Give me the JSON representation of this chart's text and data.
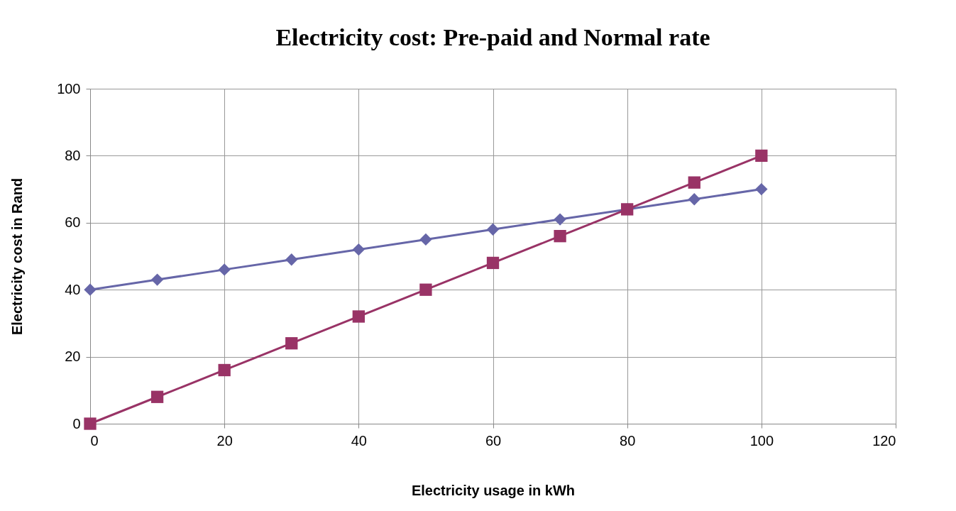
{
  "chart_data": {
    "type": "line",
    "title": "Electricity cost: Pre-paid and Normal rate",
    "xlabel": "Electricity usage in kWh",
    "ylabel": "Electricity cost in Rand",
    "x": [
      0,
      10,
      20,
      30,
      40,
      50,
      60,
      70,
      80,
      90,
      100
    ],
    "series": [
      {
        "color": "#6666a8",
        "marker": "diamond",
        "values": [
          40,
          43,
          46,
          49,
          52,
          55,
          58,
          61,
          64,
          67,
          70
        ]
      },
      {
        "color": "#993366",
        "marker": "square",
        "values": [
          0,
          8,
          16,
          24,
          32,
          40,
          48,
          56,
          64,
          72,
          80
        ]
      }
    ],
    "xlim": [
      0,
      120
    ],
    "xticks": [
      0,
      20,
      40,
      60,
      80,
      100,
      120
    ],
    "ylim": [
      0,
      100
    ],
    "yticks": [
      0,
      20,
      40,
      60,
      80,
      100
    ],
    "grid": true
  }
}
